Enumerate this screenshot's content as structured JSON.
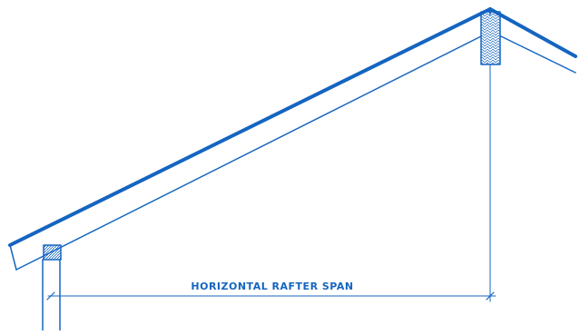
{
  "diagram": {
    "span_label": "HORIZONTAL RAFTER SPAN",
    "colors": {
      "line": "#1565c0",
      "background": "#ffffff"
    },
    "components": [
      "rafter",
      "ridge-board",
      "top-plate",
      "wall-stud",
      "dimension-line"
    ]
  }
}
